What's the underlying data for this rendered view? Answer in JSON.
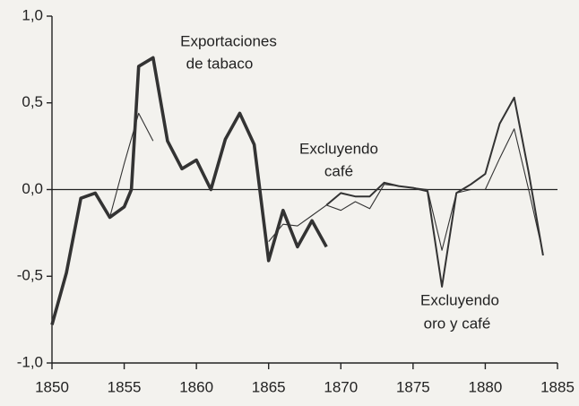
{
  "chart_data": {
    "type": "line",
    "xlim": [
      1850,
      1885
    ],
    "xticks": [
      1850,
      1855,
      1860,
      1865,
      1870,
      1875,
      1880,
      1885
    ],
    "ylim": [
      -1,
      1
    ],
    "yticks": [
      {
        "value": 1,
        "label": "1,0"
      },
      {
        "value": 0.5,
        "label": "0,5"
      },
      {
        "value": 0,
        "label": "0,0"
      },
      {
        "value": -0.5,
        "label": "-0,5"
      },
      {
        "value": -1,
        "label": "-1,0"
      }
    ],
    "annotations": [
      {
        "lines": [
          "Exportaciones",
          "de tabaco"
        ]
      },
      {
        "lines": [
          "Excluyendo",
          "café"
        ]
      },
      {
        "lines": [
          "Excluyendo",
          "oro y café"
        ]
      }
    ],
    "series": [
      {
        "name": "Exportaciones de tabaco",
        "color": "#333333",
        "x": [
          1850,
          1851,
          1852,
          1853,
          1854,
          1855,
          1855.5,
          1856,
          1857,
          1858,
          1859,
          1860,
          1861,
          1862,
          1863,
          1864,
          1865,
          1866,
          1867,
          1868,
          1869
        ],
        "values": [
          -0.78,
          -0.48,
          -0.05,
          -0.02,
          -0.16,
          -0.1,
          0.0,
          0.71,
          0.76,
          0.28,
          0.12,
          0.17,
          0.0,
          0.29,
          0.44,
          0.26,
          -0.41,
          -0.12,
          -0.33,
          -0.18,
          -0.33
        ]
      },
      {
        "name": "Excluyendo café",
        "color": "#333333",
        "x": [
          1854,
          1855,
          1856,
          1857,
          1858,
          1865,
          1866,
          1867,
          1868,
          1869,
          1870,
          1871,
          1872,
          1873,
          1874,
          1875,
          1876,
          1877,
          1878,
          1879,
          1880,
          1881,
          1882,
          1883,
          1884
        ],
        "values": [
          -0.16,
          0.15,
          0.44,
          0.28,
          null,
          -0.3,
          -0.2,
          -0.21,
          -0.15,
          -0.09,
          -0.12,
          -0.07,
          -0.11,
          0.03,
          0.02,
          0.01,
          0.0,
          -0.35,
          -0.02,
          0.0,
          0.0,
          0.18,
          0.35,
          0.0,
          -0.37
        ]
      },
      {
        "name": "Excluyendo oro y café",
        "color": "#333333",
        "x": [
          1869,
          1870,
          1871,
          1872,
          1873,
          1874,
          1875,
          1876,
          1877,
          1878,
          1879,
          1880,
          1881,
          1882,
          1883,
          1884
        ],
        "values": [
          -0.09,
          -0.02,
          -0.04,
          -0.04,
          0.04,
          0.02,
          0.01,
          -0.01,
          -0.56,
          -0.02,
          0.03,
          0.09,
          0.38,
          0.53,
          0.1,
          -0.38
        ]
      }
    ]
  }
}
